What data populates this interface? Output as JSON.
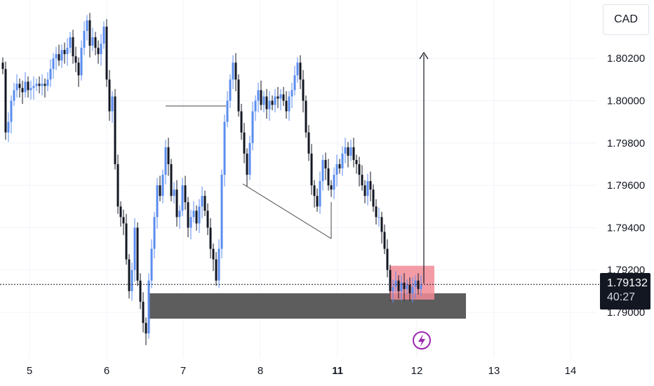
{
  "currency": "CAD",
  "current_price": "1.79132",
  "countdown": "40:27",
  "colors": {
    "up_candle": "#5b8def",
    "down_candle": "#131722",
    "demand_zone": "#5d5d5d",
    "supply_box": "#f28b96",
    "lightning_icon": "#9c27b0"
  },
  "chart_data": {
    "type": "candlestick",
    "ylim": [
      1.7888,
      1.804
    ],
    "y_ticks": [
      "1.80200",
      "1.80000",
      "1.79800",
      "1.79600",
      "1.79400",
      "1.79200",
      "1.79000"
    ],
    "y_tick_values": [
      1.802,
      1.8,
      1.798,
      1.796,
      1.794,
      1.792,
      1.79
    ],
    "x_ticks": [
      {
        "label": "5",
        "bold": false
      },
      {
        "label": "6",
        "bold": false
      },
      {
        "label": "7",
        "bold": false
      },
      {
        "label": "8",
        "bold": false
      },
      {
        "label": "11",
        "bold": true
      },
      {
        "label": "12",
        "bold": false
      },
      {
        "label": "13",
        "bold": false
      },
      {
        "label": "14",
        "bold": false
      }
    ],
    "last_price": 1.79132,
    "zones": [
      {
        "name": "demand-zone",
        "low": 1.7897,
        "high": 1.7909
      },
      {
        "name": "entry-box",
        "low": 1.7906,
        "high": 1.7922
      }
    ],
    "annotations": [
      "target-arrow",
      "flag-line",
      "lightning-marker"
    ],
    "grid": true
  }
}
